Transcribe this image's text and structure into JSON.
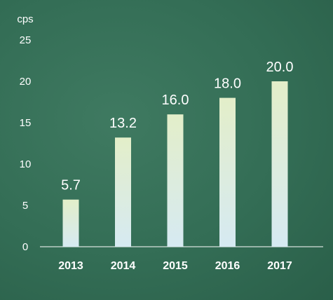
{
  "chart_data": {
    "type": "bar",
    "unit_label": "cps",
    "categories": [
      "2013",
      "2014",
      "2015",
      "2016",
      "2017"
    ],
    "values": [
      5.7,
      13.2,
      16.0,
      18.0,
      20.0
    ],
    "value_labels": [
      "5.7",
      "13.2",
      "16.0",
      "18.0",
      "20.0"
    ],
    "ylim": [
      0,
      25
    ],
    "yticks": [
      "0",
      "5",
      "10",
      "15",
      "20",
      "25"
    ],
    "grid": false,
    "colors": {
      "background": "#336d55",
      "bar_top": "#e3eec9",
      "bar_bottom": "#d6eaf2",
      "text": "#ffffff",
      "axis": "#ffffff"
    }
  }
}
